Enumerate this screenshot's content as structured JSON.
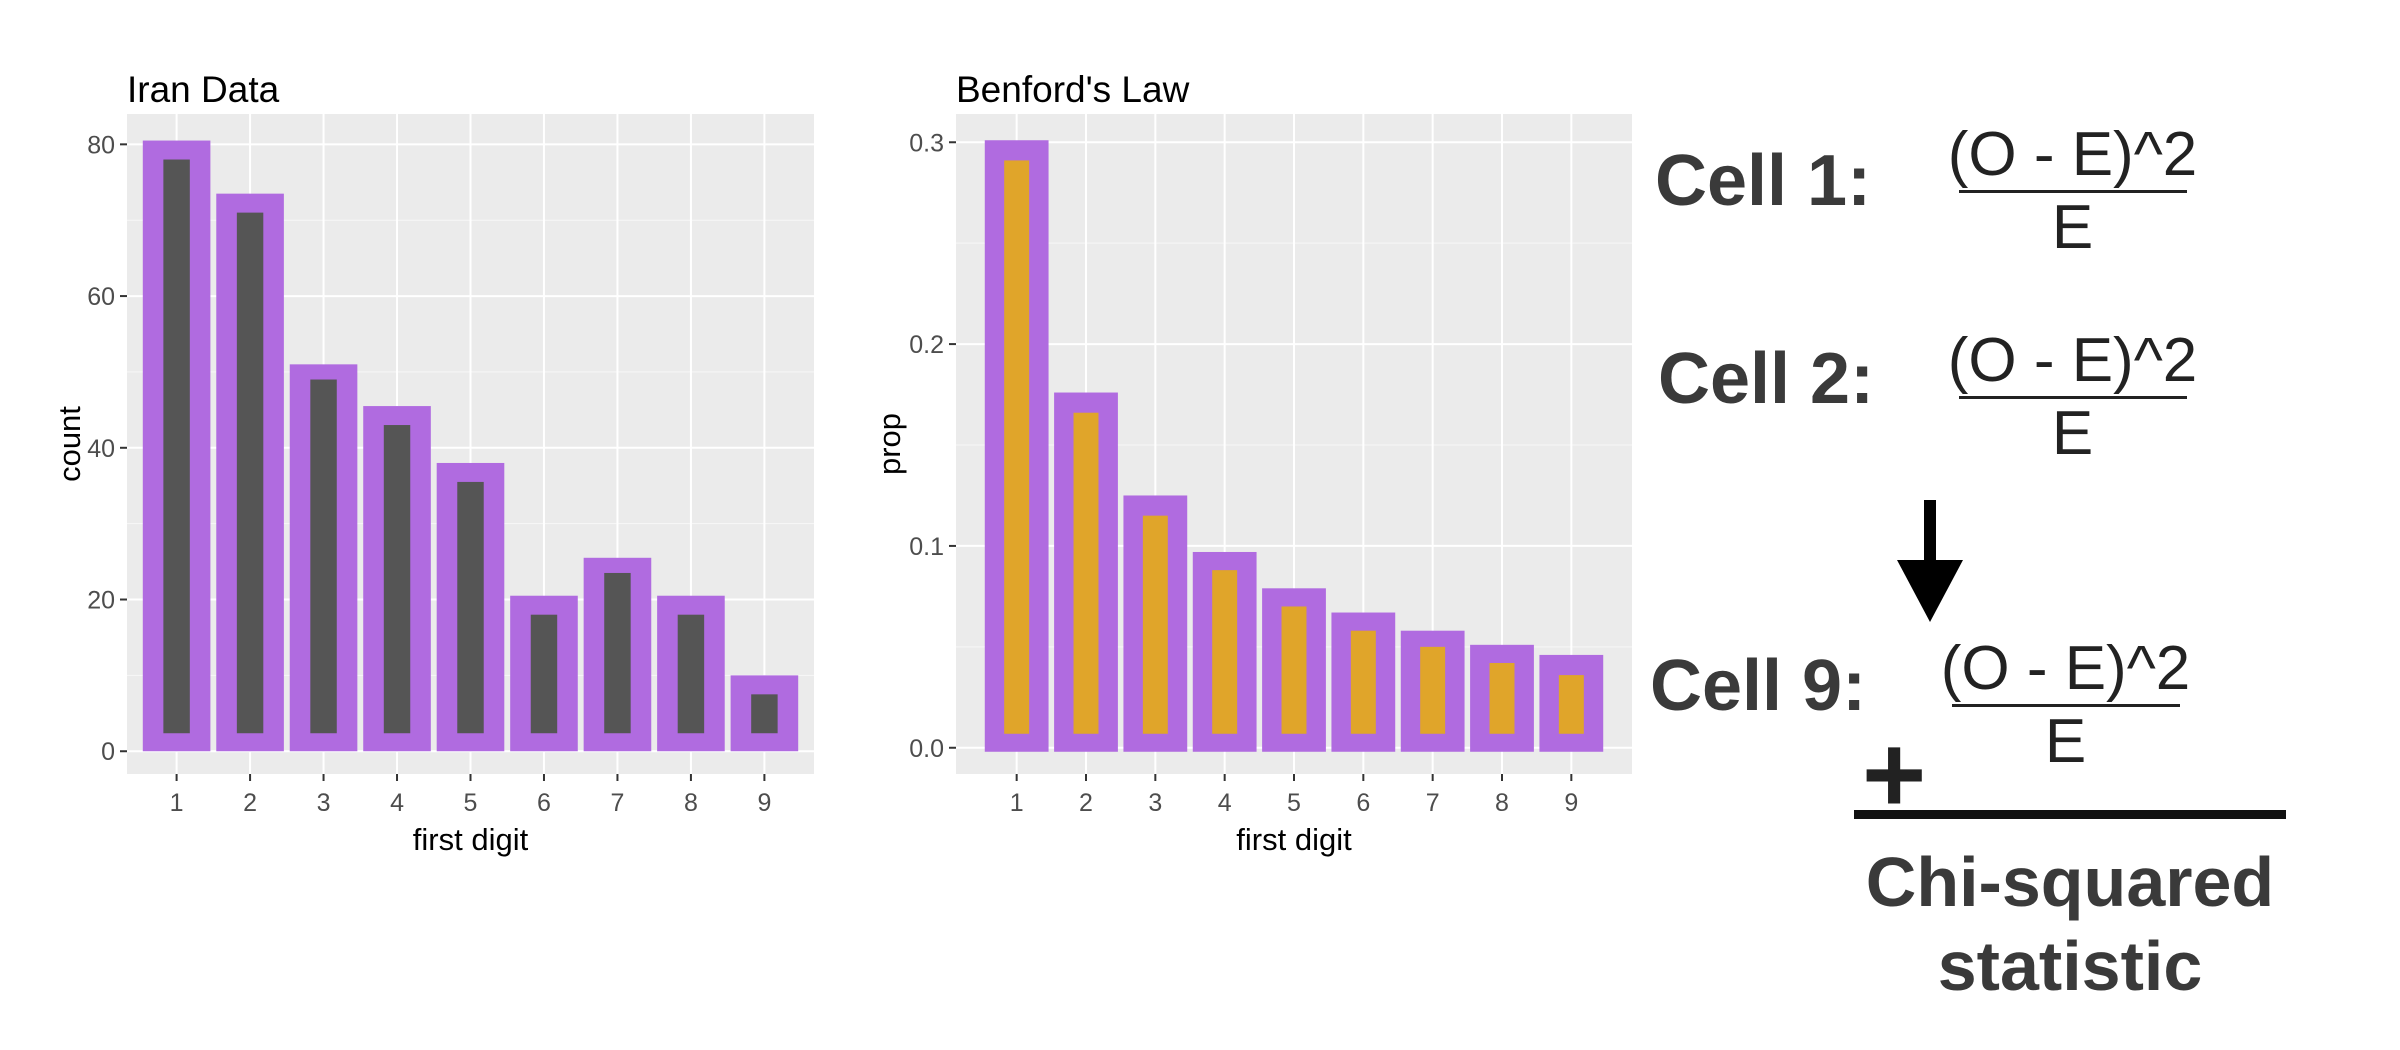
{
  "chart_data": [
    {
      "type": "bar",
      "title": "Iran Data",
      "xlabel": "first digit",
      "ylabel": "count",
      "categories": [
        "1",
        "2",
        "3",
        "4",
        "5",
        "6",
        "7",
        "8",
        "9"
      ],
      "series": [
        {
          "values": [
            80.5,
            73.5,
            51,
            45.5,
            38,
            20.5,
            25.5,
            20.5,
            10
          ]
        },
        {
          "values": [
            78,
            71,
            49,
            43,
            35.5,
            18,
            23.5,
            18,
            7.5
          ]
        }
      ],
      "ylim": [
        -3,
        84
      ],
      "yticks": [
        0,
        20,
        40,
        60,
        80
      ],
      "ytick_labels": [
        "0",
        "20",
        "40",
        "60",
        "80"
      ],
      "grid": true,
      "colors": {
        "outer": "#b06be0",
        "inner": "#555555",
        "panel": "#ebebeb"
      }
    },
    {
      "type": "bar",
      "title": "Benford's Law",
      "xlabel": "first digit",
      "ylabel": "prop",
      "categories": [
        "1",
        "2",
        "3",
        "4",
        "5",
        "6",
        "7",
        "8",
        "9"
      ],
      "series": [
        {
          "values": [
            0.301,
            0.176,
            0.125,
            0.097,
            0.079,
            0.067,
            0.058,
            0.051,
            0.046
          ]
        },
        {
          "values": [
            0.291,
            0.166,
            0.115,
            0.088,
            0.07,
            0.058,
            0.05,
            0.042,
            0.036
          ]
        }
      ],
      "ylim": [
        -0.013,
        0.314
      ],
      "yticks": [
        0.0,
        0.1,
        0.2,
        0.3
      ],
      "ytick_labels": [
        "0.0",
        "0.1",
        "0.2",
        "0.3"
      ],
      "grid": true,
      "colors": {
        "outer": "#b06be0",
        "inner": "#e0a52a",
        "panel": "#ebebeb"
      }
    }
  ],
  "formula": {
    "cells": [
      {
        "label": "Cell 1:",
        "numerator": "(O - E)^2",
        "denominator": "E"
      },
      {
        "label": "Cell 2:",
        "numerator": "(O - E)^2",
        "denominator": "E"
      },
      {
        "label": "Cell 9:",
        "numerator": "(O - E)^2",
        "denominator": "E"
      }
    ],
    "plus": "+",
    "result_line1": "Chi-squared",
    "result_line2": "statistic"
  }
}
